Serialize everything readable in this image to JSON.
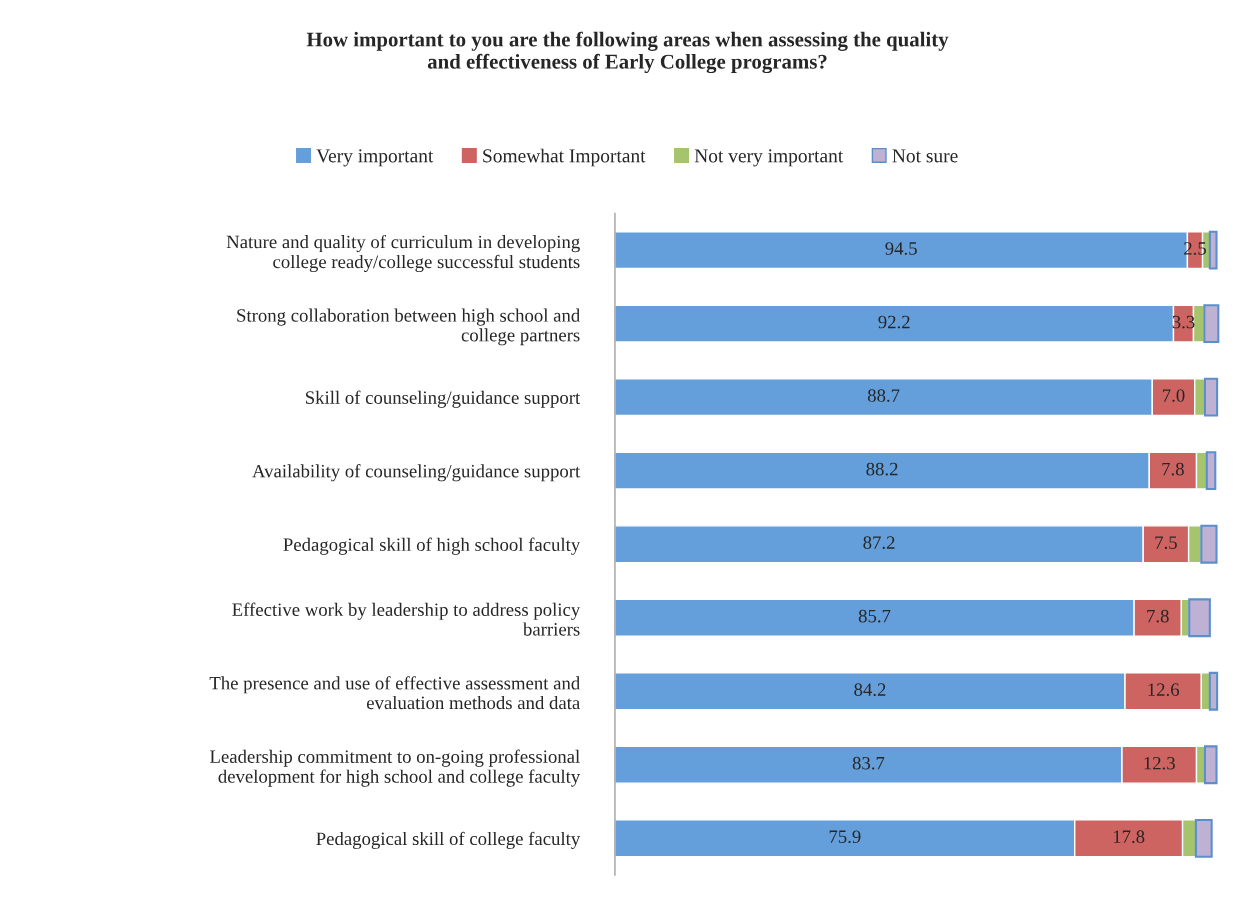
{
  "chart_data": {
    "type": "bar",
    "orientation": "horizontal",
    "stacked": true,
    "title": "How important to you are the following areas when assessing the quality\nand effectiveness of Early College programs?",
    "categories": [
      "Nature and quality of curriculum in developing\ncollege ready/college successful students",
      "Strong collaboration between high school and\ncollege partners",
      "Skill of counseling/guidance support",
      "Availability of counseling/guidance support",
      "Pedagogical skill of high school faculty",
      "Effective work by leadership to address policy\nbarriers",
      "The presence and use of effective assessment and\nevaluation methods and data",
      "Leadership commitment to on-going professional\ndevelopment for high school and college faculty",
      "Pedagogical skill of college faculty"
    ],
    "series": [
      {
        "name": "Very important",
        "color": "#649fdb",
        "values": [
          94.5,
          92.2,
          88.7,
          88.2,
          87.2,
          85.7,
          84.2,
          83.7,
          75.9
        ],
        "value_labels": [
          "94.5",
          "92.2",
          "88.7",
          "88.2",
          "87.2",
          "85.7",
          "84.2",
          "83.7",
          "75.9"
        ]
      },
      {
        "name": "Somewhat Important",
        "color": "#ce6461",
        "values": [
          2.5,
          3.3,
          7.0,
          7.8,
          7.5,
          7.8,
          12.6,
          12.3,
          17.8
        ],
        "value_labels": [
          "2.5",
          "3.3",
          "7.0",
          "7.8",
          "7.5",
          "7.8",
          "12.6",
          "12.3",
          "17.8"
        ]
      },
      {
        "name": "Not very important",
        "color": "#a6c36e",
        "values": [
          1.2,
          1.8,
          1.7,
          1.7,
          2.1,
          1.3,
          1.4,
          1.4,
          2.2
        ]
      },
      {
        "name": "Not sure",
        "color": "#bfb1d3",
        "values": [
          1.1,
          2.3,
          2.0,
          1.4,
          2.5,
          3.4,
          1.2,
          1.9,
          2.6
        ]
      }
    ],
    "legend": "top",
    "grid": false
  }
}
